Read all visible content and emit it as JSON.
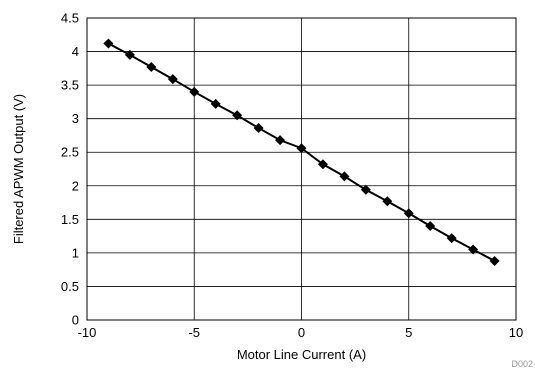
{
  "chart_data": {
    "type": "line",
    "title": "",
    "xlabel": "Motor Line Current (A)",
    "ylabel": "Filtered APWM Output (V)",
    "xlim": [
      -10,
      10
    ],
    "ylim": [
      0,
      4.5
    ],
    "x_ticks": [
      -10,
      -5,
      0,
      5,
      10
    ],
    "y_ticks": [
      0,
      0.5,
      1,
      1.5,
      2,
      2.5,
      3,
      3.5,
      4,
      4.5
    ],
    "x_tick_labels": [
      "-10",
      "-5",
      "0",
      "5",
      "10"
    ],
    "y_tick_labels": [
      "0",
      "0.5",
      "1",
      "1.5",
      "2",
      "2.5",
      "3",
      "3.5",
      "4",
      "4.5"
    ],
    "grid": true,
    "legend": "none",
    "marker": "diamond",
    "series": [
      {
        "x": [
          -9,
          -8,
          -7,
          -6,
          -5,
          -4,
          -3,
          -2,
          -1,
          0,
          1,
          2,
          3,
          4,
          5,
          6,
          7,
          8,
          9
        ],
        "y": [
          4.12,
          3.95,
          3.77,
          3.59,
          3.4,
          3.22,
          3.05,
          2.86,
          2.68,
          2.56,
          2.32,
          2.14,
          1.94,
          1.77,
          1.59,
          1.4,
          1.22,
          1.05,
          0.88
        ],
        "color": "#000000"
      }
    ],
    "corner_label": "D002"
  }
}
